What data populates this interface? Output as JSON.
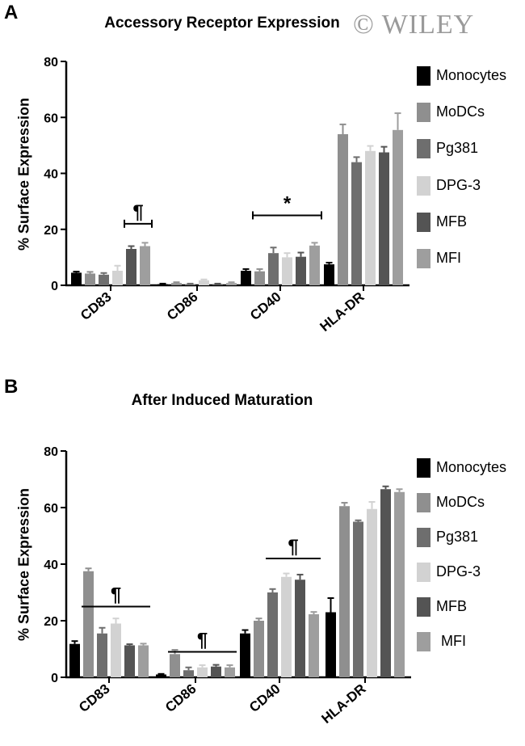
{
  "watermark": "© WILEY",
  "colors": {
    "Monocytes": "#000000",
    "MoDCs": "#8f8f8f",
    "Pg381": "#6e6e6e",
    "DPG-3": "#d2d2d2",
    "MFB": "#545454",
    "MFI": "#9e9e9e"
  },
  "chart_data": [
    {
      "panel": "A",
      "type": "bar",
      "title": "Accessory Receptor Expression",
      "ylabel": "% Surface Expression",
      "xlabel": "",
      "ylim": [
        0,
        80
      ],
      "yticks": [
        0,
        20,
        40,
        60,
        80
      ],
      "categories": [
        "CD83",
        "CD86",
        "CD40",
        "HLA-DR"
      ],
      "legend": [
        "Monocytes",
        "MoDCs",
        "Pg381",
        "DPG-3",
        "MFB",
        "MFI"
      ],
      "legend_position": "right",
      "series": [
        {
          "name": "Monocytes",
          "values": [
            4.5,
            0.4,
            5.2,
            7.5
          ],
          "errors": [
            0.4,
            0.2,
            0.6,
            0.6
          ]
        },
        {
          "name": "MoDCs",
          "values": [
            4.2,
            0.8,
            5.0,
            54
          ],
          "errors": [
            0.6,
            0.3,
            0.8,
            3.5
          ]
        },
        {
          "name": "Pg381",
          "values": [
            3.8,
            0.4,
            11.5,
            44
          ],
          "errors": [
            0.6,
            0.2,
            2.0,
            1.8
          ]
        },
        {
          "name": "DPG-3",
          "values": [
            5.2,
            1.8,
            10.0,
            48
          ],
          "errors": [
            1.8,
            0.3,
            1.5,
            1.8
          ]
        },
        {
          "name": "MFB",
          "values": [
            13.0,
            0.4,
            10.2,
            47.5
          ],
          "errors": [
            1.0,
            0.2,
            1.5,
            2.0
          ]
        },
        {
          "name": "MFI",
          "values": [
            14.0,
            0.8,
            14.2,
            55.5
          ],
          "errors": [
            1.2,
            0.3,
            1.0,
            6.0
          ]
        }
      ],
      "annotations": [
        {
          "symbol": "¶",
          "category": "CD83",
          "from_series": 4,
          "to_series": 5,
          "y": 22,
          "capped": true
        },
        {
          "symbol": "*",
          "category": "CD40",
          "from_series": 1,
          "to_series": 5,
          "y": 25,
          "capped": true
        }
      ]
    },
    {
      "panel": "B",
      "type": "bar",
      "title": "After Induced Maturation",
      "ylabel": "% Surface Expression",
      "xlabel": "",
      "ylim": [
        0,
        80
      ],
      "yticks": [
        0,
        20,
        40,
        60,
        80
      ],
      "categories": [
        "CD83",
        "CD86",
        "CD40",
        "HLA-DR"
      ],
      "legend": [
        "Monocytes",
        "MoDCs",
        "Pg381",
        "DPG-3",
        "MFB",
        "MFI"
      ],
      "legend_position": "right",
      "series": [
        {
          "name": "Monocytes",
          "values": [
            11.8,
            1.0,
            15.5,
            23
          ],
          "errors": [
            1.0,
            0.2,
            1.2,
            5.0
          ]
        },
        {
          "name": "MoDCs",
          "values": [
            37.5,
            8.2,
            20.0,
            60.5
          ],
          "errors": [
            1.0,
            1.5,
            0.8,
            1.2
          ]
        },
        {
          "name": "Pg381",
          "values": [
            15.5,
            2.5,
            30.0,
            55.0
          ],
          "errors": [
            2.0,
            1.0,
            1.2,
            0.5
          ]
        },
        {
          "name": "DPG-3",
          "values": [
            19.0,
            3.5,
            35.5,
            59.5
          ],
          "errors": [
            1.8,
            0.8,
            1.2,
            2.5
          ]
        },
        {
          "name": "MFB",
          "values": [
            11.3,
            3.8,
            34.5,
            66.5
          ],
          "errors": [
            0.4,
            0.6,
            1.8,
            1.0
          ]
        },
        {
          "name": "MFI",
          "values": [
            11.3,
            3.5,
            22.3,
            65.5
          ],
          "errors": [
            0.6,
            0.8,
            0.8,
            1.0
          ]
        }
      ],
      "annotations": [
        {
          "symbol": "¶",
          "category": "CD83",
          "from_series": 1,
          "to_series": 5,
          "y": 25,
          "capped": false
        },
        {
          "symbol": "¶",
          "category": "CD86",
          "from_series": 1,
          "to_series": 5,
          "y": 9,
          "capped": false
        },
        {
          "symbol": "¶",
          "category": "CD40",
          "from_series": 2,
          "to_series": 5,
          "y": 42,
          "capped": false
        }
      ]
    }
  ]
}
